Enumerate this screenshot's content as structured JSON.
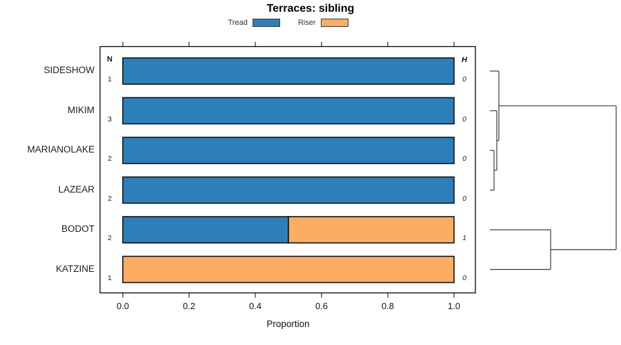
{
  "chart_data": {
    "type": "bar",
    "orientation": "horizontal",
    "stacked": true,
    "title": "Terraces: sibling",
    "categories": [
      "SIDESHOW",
      "MIKIM",
      "MARIANOLAKE",
      "LAZEAR",
      "BODOT",
      "KATZINE"
    ],
    "series": [
      {
        "name": "Tread",
        "color": "#2C7FB9",
        "values": [
          1.0,
          1.0,
          1.0,
          1.0,
          0.5,
          0.0
        ]
      },
      {
        "name": "Riser",
        "color": "#FCAD61",
        "values": [
          0.0,
          0.0,
          0.0,
          0.0,
          0.5,
          1.0
        ]
      }
    ],
    "n_column": {
      "label": "N",
      "values": [
        1,
        3,
        2,
        2,
        2,
        1
      ]
    },
    "h_column": {
      "label": "H",
      "values": [
        0,
        0,
        0,
        0,
        1,
        0
      ]
    },
    "xlabel": "Proportion",
    "xlim": [
      0,
      1
    ],
    "x_ticks": [
      "0.0",
      "0.2",
      "0.4",
      "0.6",
      "0.8",
      "1.0"
    ],
    "axis_ticks_top": true,
    "grid": false,
    "legend_position": "top",
    "bar_edge_color": "#101010",
    "dendrogram_color": "#3a3a3a",
    "dendrogram": {
      "height": 1.0,
      "children": [
        {
          "height": 0.071,
          "children": [
            "SIDESHOW",
            {
              "height": 0.0546,
              "children": [
                "MIKIM",
                {
                  "height": 0.0328,
                  "children": [
                    "MARIANOLAKE",
                    "LAZEAR"
                  ]
                }
              ]
            }
          ]
        },
        {
          "height": 0.481,
          "children": [
            "BODOT",
            "KATZINE"
          ]
        }
      ]
    }
  }
}
